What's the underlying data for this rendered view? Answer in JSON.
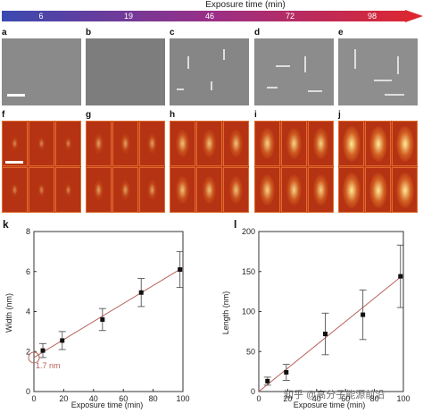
{
  "timebar": {
    "title": "Exposure time (min)",
    "ticks": [
      "6",
      "19",
      "46",
      "72",
      "98"
    ],
    "gradient_colors": [
      "#3a49b0",
      "#9a2f86",
      "#e0262c"
    ]
  },
  "panels": {
    "tem_letters": [
      "a",
      "b",
      "c",
      "d",
      "e"
    ],
    "fft_letters": [
      "f",
      "g",
      "h",
      "i",
      "j"
    ]
  },
  "chart_data": [
    {
      "type": "scatter",
      "panel_letter": "k",
      "title": "",
      "xlabel": "Exposure time (min)",
      "ylabel": "Width (nm)",
      "xlim": [
        0,
        100
      ],
      "ylim": [
        0,
        8
      ],
      "xticks": [
        "0",
        "20",
        "40",
        "60",
        "80",
        "100"
      ],
      "yticks": [
        "0",
        "2",
        "4",
        "6",
        "8"
      ],
      "points": [
        {
          "x": 6,
          "y": 2.05,
          "err": 0.35
        },
        {
          "x": 19,
          "y": 2.55,
          "err": 0.45
        },
        {
          "x": 46,
          "y": 3.6,
          "err": 0.55
        },
        {
          "x": 72,
          "y": 4.95,
          "err": 0.7
        },
        {
          "x": 98,
          "y": 6.1,
          "err": 0.9
        }
      ],
      "fit_line": {
        "x": [
          0,
          100
        ],
        "y": [
          1.7,
          6.2
        ],
        "color": "#b8615a"
      },
      "annotation": {
        "text": "1.7 nm",
        "x": 0,
        "y": 1.7,
        "color": "#b8615a"
      }
    },
    {
      "type": "scatter",
      "panel_letter": "l",
      "title": "",
      "xlabel": "Exposure time (min)",
      "ylabel": "Length (nm)",
      "xlim": [
        0,
        100
      ],
      "ylim": [
        0,
        200
      ],
      "xticks": [
        "0",
        "20",
        "40",
        "60",
        "80",
        "100"
      ],
      "yticks": [
        "0",
        "50",
        "100",
        "150",
        "200"
      ],
      "points": [
        {
          "x": 6,
          "y": 13,
          "err": 5
        },
        {
          "x": 19,
          "y": 24,
          "err": 10
        },
        {
          "x": 46,
          "y": 72,
          "err": 26
        },
        {
          "x": 72,
          "y": 96,
          "err": 31
        },
        {
          "x": 98,
          "y": 144,
          "err": 39
        }
      ],
      "fit_line": {
        "x": [
          0,
          100
        ],
        "y": [
          0,
          146
        ],
        "color": "#b8615a"
      }
    }
  ],
  "watermark": "知乎 @高分子能源前沿"
}
